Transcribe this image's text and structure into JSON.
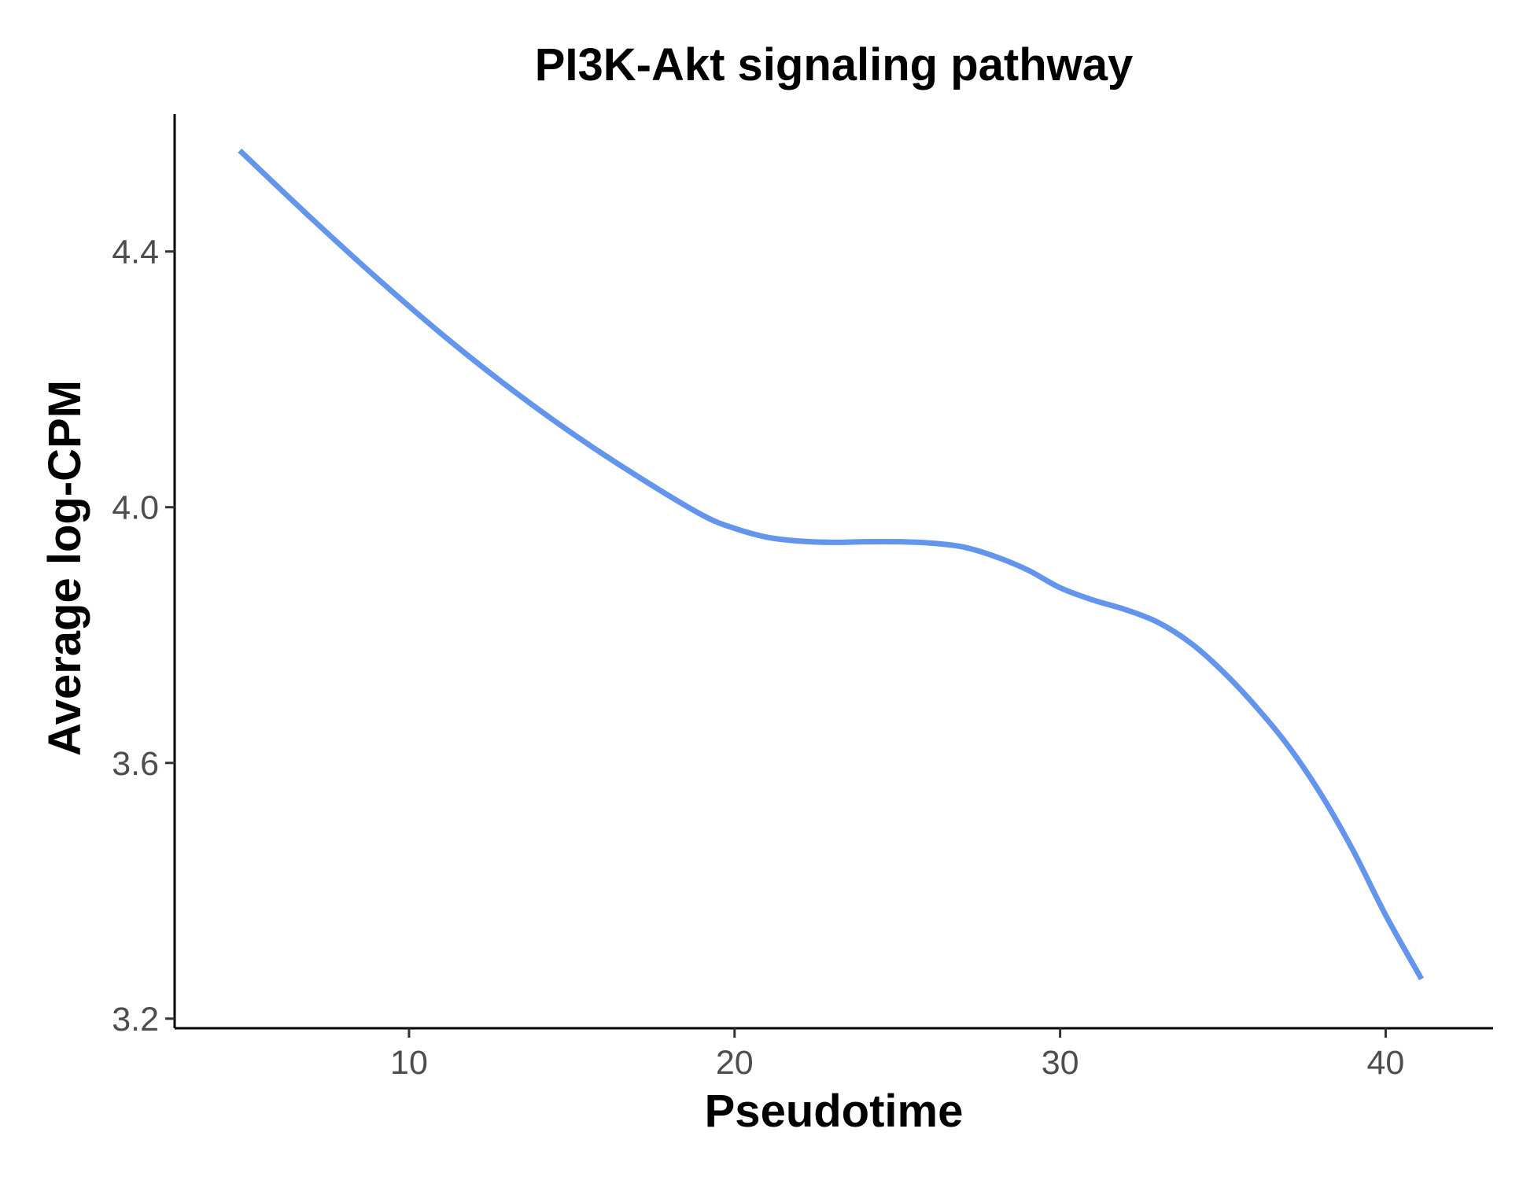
{
  "chart_data": {
    "type": "line",
    "title": "PI3K-Akt signaling pathway",
    "xlabel": "Pseudotime",
    "ylabel": "Average log-CPM",
    "xlim": [
      2.8,
      43.3
    ],
    "ylim": [
      3.185,
      4.615
    ],
    "x_ticks": [
      10,
      20,
      30,
      40
    ],
    "x_tick_labels": [
      "10",
      "20",
      "30",
      "40"
    ],
    "y_ticks": [
      3.2,
      3.6,
      4.0,
      4.4
    ],
    "y_tick_labels": [
      "3.2",
      "3.6",
      "4.0",
      "4.4"
    ],
    "grid": false,
    "legend": "none",
    "series": [
      {
        "color": "#6495ED",
        "x": [
          4.8,
          7,
          9,
          11,
          13,
          15,
          17,
          19,
          20,
          21,
          22,
          23,
          24,
          25,
          26,
          27,
          28,
          29,
          30,
          31,
          32,
          33,
          34,
          35,
          36,
          37,
          38,
          39,
          40,
          41.1
        ],
        "y": [
          4.558,
          4.452,
          4.359,
          4.271,
          4.19,
          4.116,
          4.049,
          3.988,
          3.967,
          3.953,
          3.947,
          3.945,
          3.946,
          3.946,
          3.944,
          3.938,
          3.923,
          3.902,
          3.874,
          3.855,
          3.84,
          3.82,
          3.788,
          3.743,
          3.689,
          3.627,
          3.552,
          3.463,
          3.362,
          3.262
        ]
      }
    ]
  }
}
